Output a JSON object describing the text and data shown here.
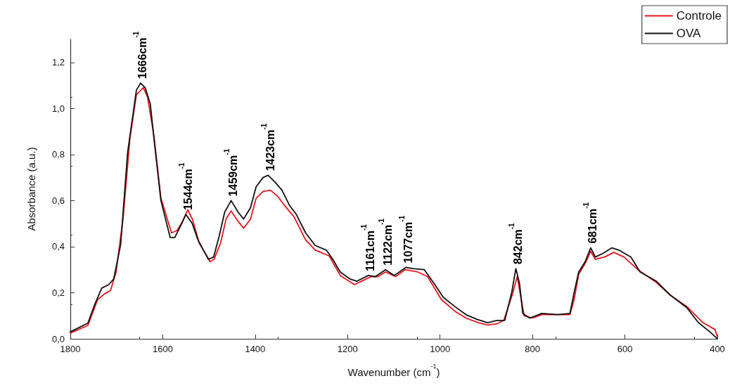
{
  "chart_data": {
    "type": "line",
    "xlabel": "Wavenumber (cm$^{-1}$)",
    "ylabel": "Absorbance (a.u.)",
    "xlim": [
      1800,
      400
    ],
    "xticks": [
      1800,
      1600,
      1400,
      1200,
      1000,
      800,
      600,
      400
    ],
    "ylim": [
      0,
      1.3
    ],
    "yticks": [
      {
        "value": 0,
        "label": "0,0"
      },
      {
        "value": 0.2,
        "label": "0,2"
      },
      {
        "value": 0.4,
        "label": "0,4"
      },
      {
        "value": 0.6,
        "label": "0,6"
      },
      {
        "value": 0.8,
        "label": "0,8"
      },
      {
        "value": 1.0,
        "label": "1,0"
      },
      {
        "value": 1.2,
        "label": "1,2"
      }
    ],
    "grid": false,
    "legend": "top right",
    "marker": "none",
    "line_style": "solid",
    "series": [
      {
        "name": "Controle",
        "color": "#e8141c",
        "x": [
          1800,
          1762,
          1741,
          1726,
          1713,
          1701,
          1686,
          1671,
          1657,
          1642,
          1633,
          1619,
          1604,
          1581,
          1569,
          1557,
          1546,
          1536,
          1521,
          1509,
          1498,
          1489,
          1475,
          1463,
          1452,
          1437,
          1425,
          1410,
          1398,
          1383,
          1367,
          1352,
          1337,
          1316,
          1291,
          1270,
          1240,
          1216,
          1185,
          1170,
          1149,
          1134,
          1118,
          1096,
          1076,
          1048,
          1027,
          997,
          968,
          944,
          917,
          897,
          877,
          862,
          844,
          833,
          826,
          818,
          800,
          780,
          739,
          719,
          710,
          700,
          684,
          674,
          664,
          644,
          624,
          602,
          572,
          532,
          502,
          466,
          431,
          405,
          400
        ],
        "values": [
          0.025,
          0.058,
          0.17,
          0.195,
          0.21,
          0.29,
          0.52,
          0.87,
          1.06,
          1.09,
          1.05,
          0.88,
          0.61,
          0.46,
          0.47,
          0.51,
          0.56,
          0.52,
          0.415,
          0.375,
          0.335,
          0.345,
          0.415,
          0.52,
          0.555,
          0.51,
          0.48,
          0.52,
          0.61,
          0.64,
          0.645,
          0.62,
          0.58,
          0.53,
          0.43,
          0.385,
          0.36,
          0.275,
          0.235,
          0.25,
          0.27,
          0.27,
          0.29,
          0.27,
          0.3,
          0.29,
          0.27,
          0.17,
          0.12,
          0.09,
          0.07,
          0.06,
          0.065,
          0.08,
          0.19,
          0.27,
          0.19,
          0.1,
          0.09,
          0.105,
          0.105,
          0.105,
          0.17,
          0.28,
          0.335,
          0.38,
          0.345,
          0.355,
          0.375,
          0.355,
          0.3,
          0.245,
          0.19,
          0.14,
          0.07,
          0.04,
          0.01
        ]
      },
      {
        "name": "OVA",
        "color": "#111111",
        "x": [
          1800,
          1762,
          1747,
          1732,
          1717,
          1706,
          1691,
          1676,
          1657,
          1648,
          1638,
          1627,
          1618,
          1604,
          1584,
          1574,
          1559,
          1550,
          1536,
          1524,
          1512,
          1501,
          1490,
          1478,
          1466,
          1452,
          1437,
          1425,
          1410,
          1398,
          1383,
          1372,
          1357,
          1342,
          1326,
          1311,
          1291,
          1270,
          1246,
          1232,
          1216,
          1195,
          1180,
          1155,
          1140,
          1118,
          1099,
          1074,
          1059,
          1034,
          1013,
          993,
          968,
          944,
          921,
          897,
          877,
          860,
          845,
          836,
          828,
          821,
          806,
          780,
          745,
          719,
          710,
          700,
          686,
          674,
          664,
          648,
          628,
          613,
          587,
          567,
          532,
          502,
          466,
          441,
          416,
          400
        ],
        "values": [
          0.03,
          0.068,
          0.15,
          0.22,
          0.235,
          0.26,
          0.41,
          0.81,
          1.08,
          1.11,
          1.09,
          1.02,
          0.85,
          0.6,
          0.44,
          0.44,
          0.5,
          0.54,
          0.5,
          0.43,
          0.385,
          0.345,
          0.355,
          0.445,
          0.55,
          0.6,
          0.55,
          0.52,
          0.57,
          0.66,
          0.7,
          0.71,
          0.68,
          0.645,
          0.58,
          0.54,
          0.46,
          0.405,
          0.385,
          0.345,
          0.29,
          0.26,
          0.25,
          0.275,
          0.27,
          0.3,
          0.275,
          0.31,
          0.305,
          0.3,
          0.24,
          0.18,
          0.14,
          0.105,
          0.085,
          0.07,
          0.08,
          0.08,
          0.2,
          0.305,
          0.24,
          0.11,
          0.09,
          0.11,
          0.105,
          0.11,
          0.2,
          0.29,
          0.335,
          0.395,
          0.355,
          0.37,
          0.395,
          0.385,
          0.355,
          0.29,
          0.25,
          0.19,
          0.135,
          0.07,
          0.03,
          0.0
        ]
      }
    ],
    "annotations": [
      {
        "text": "1666cm$^{-1}$",
        "x": 1648,
        "y": 1.11
      },
      {
        "text": "1544cm$^{-1}$",
        "x": 1550,
        "y": 0.54
      },
      {
        "text": "1459cm$^{-1}$",
        "x": 1452,
        "y": 0.6
      },
      {
        "text": "1423cm$^{-1}$",
        "x": 1372,
        "y": 0.71
      },
      {
        "text": "1161cm$^{-1}$",
        "x": 1155,
        "y": 0.275
      },
      {
        "text": "1122cm$^{-1}$",
        "x": 1118,
        "y": 0.3
      },
      {
        "text": "1077cm$^{-1}$",
        "x": 1074,
        "y": 0.31
      },
      {
        "text": "842cm$^{-1}$",
        "x": 836,
        "y": 0.305
      },
      {
        "text": "681cm$^{-1}$",
        "x": 674,
        "y": 0.395
      }
    ]
  }
}
